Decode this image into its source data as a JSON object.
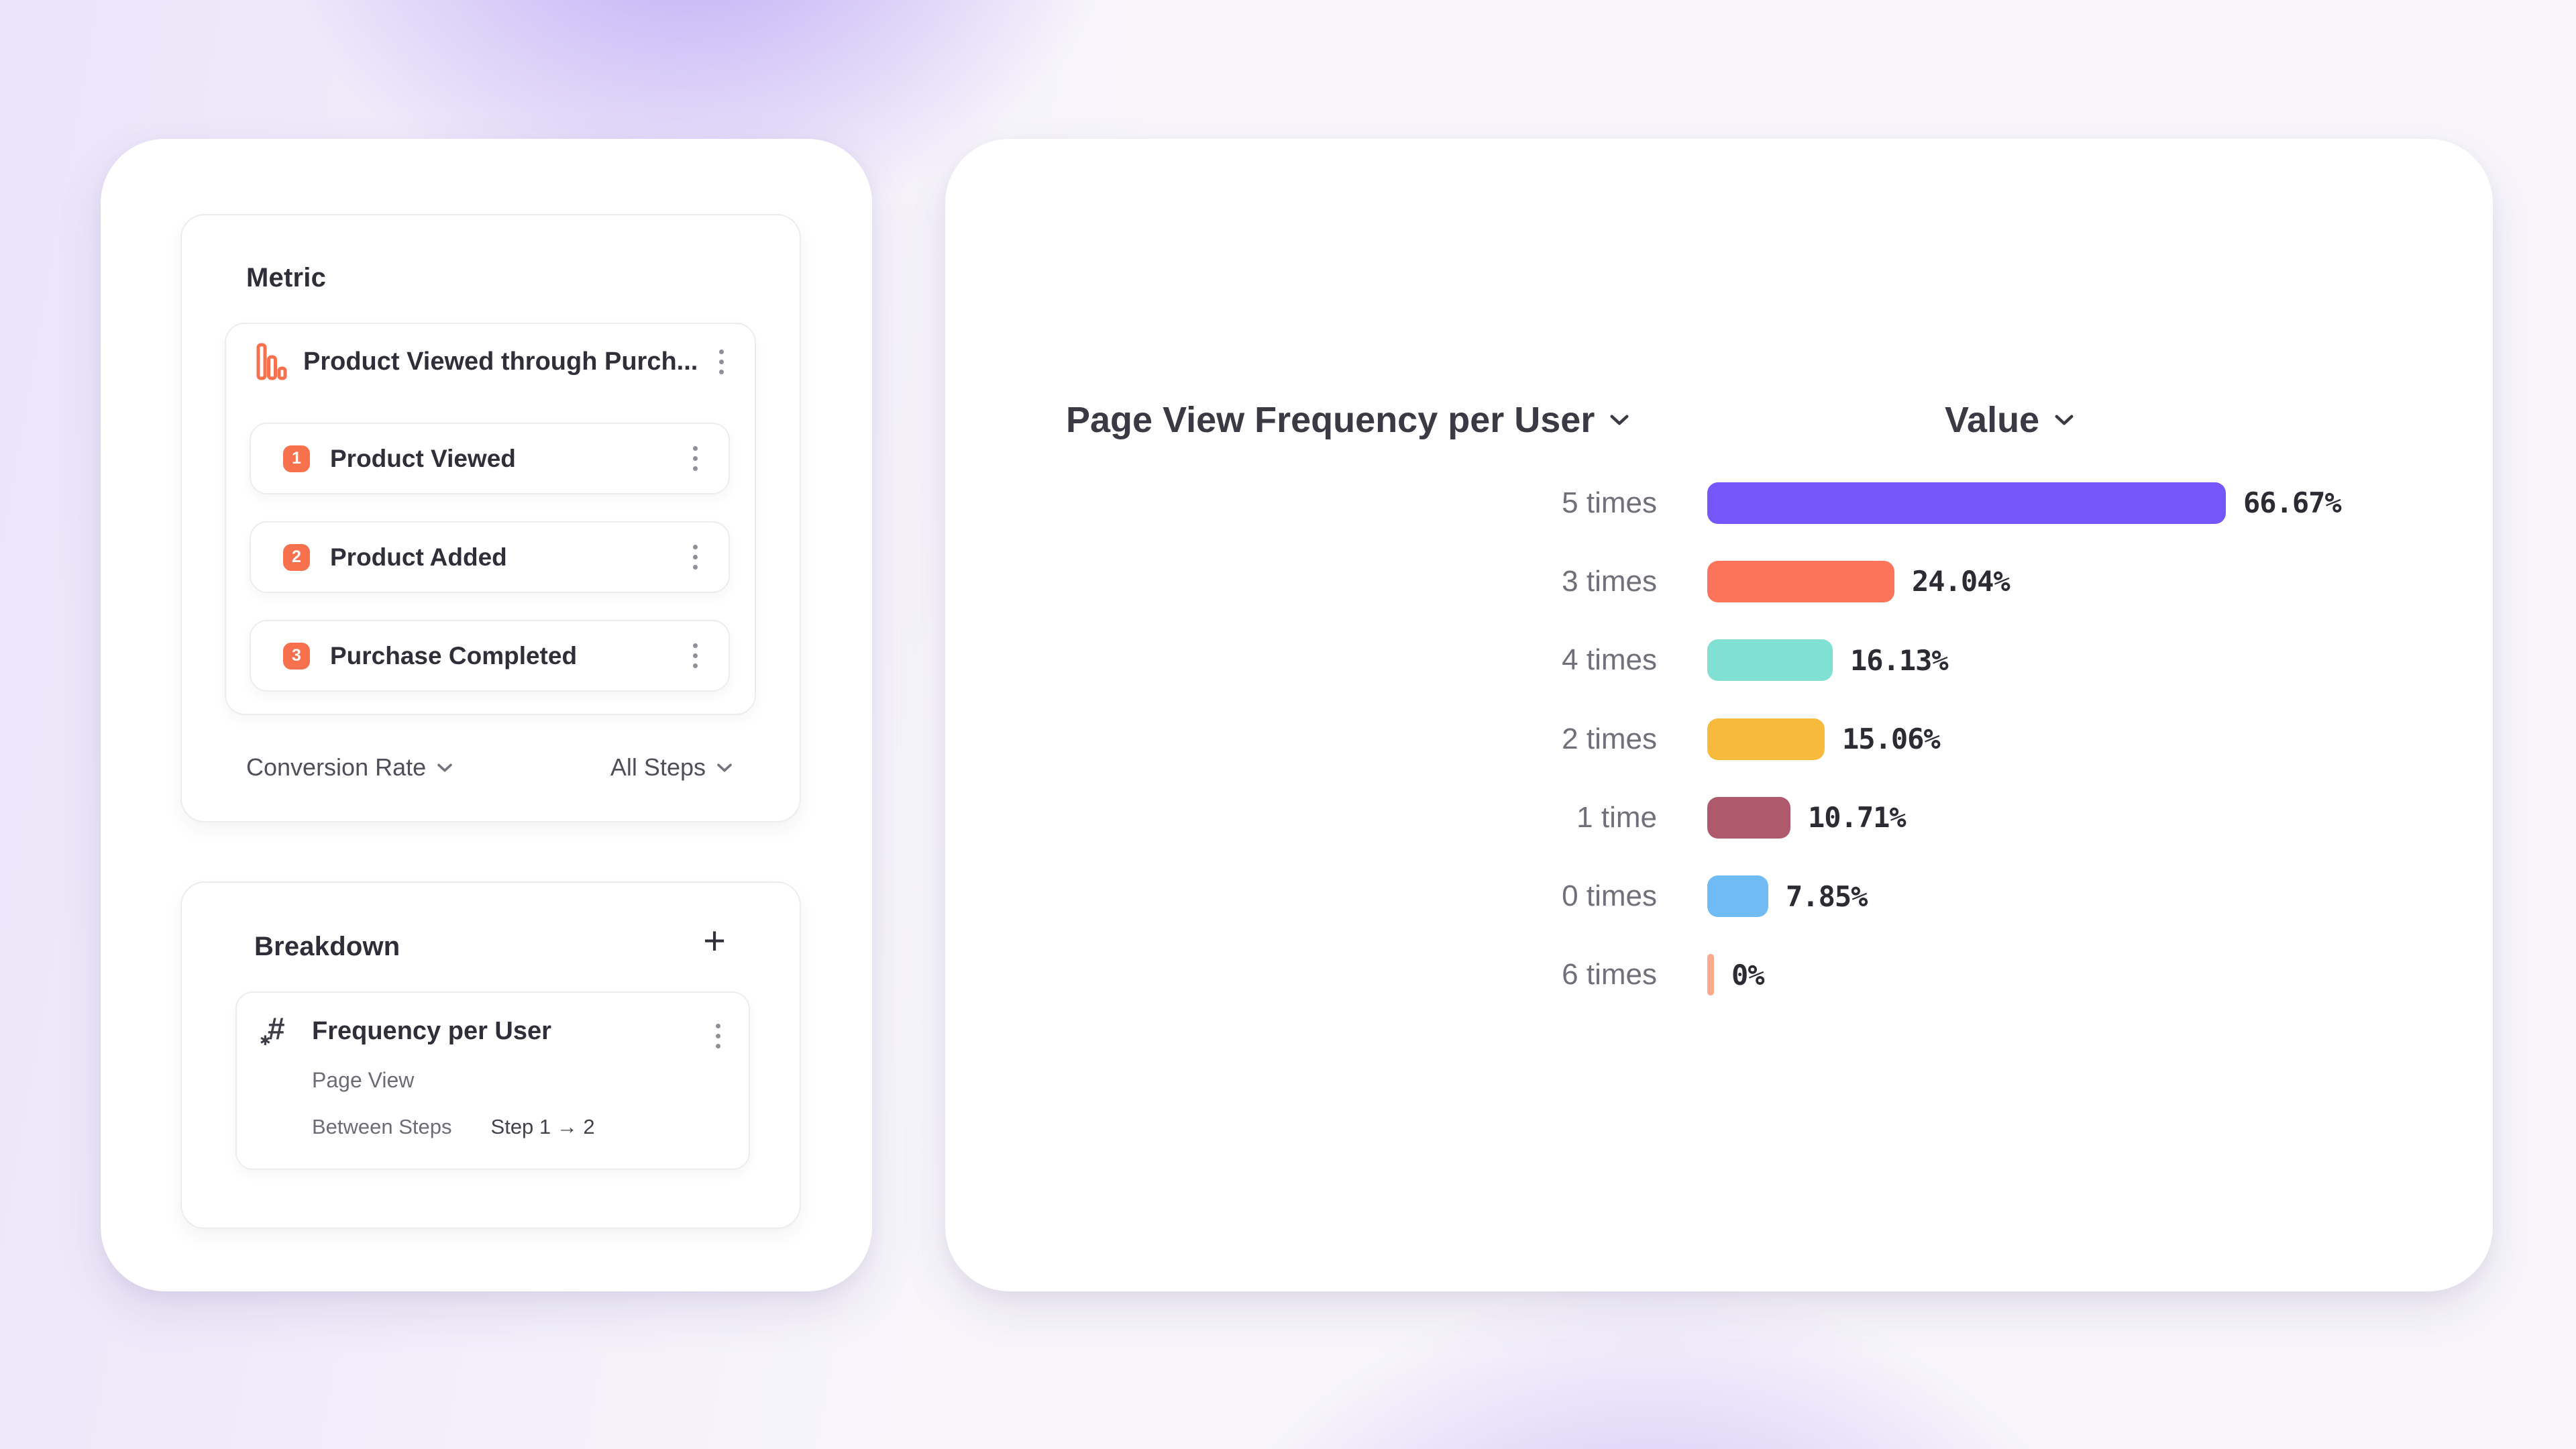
{
  "app": {
    "page_bg": "#f8f6fb",
    "glow_color": "#8a64f0",
    "accent_orange": "#f7714f"
  },
  "icons": {
    "metric_item_icon": "funnel-bars-icon",
    "breakdown_item_icon": "numeric-property-icon",
    "menu_icon": "kebab-menu-icon",
    "add_icon": "plus-icon",
    "dropdown_icon": "chevron-down-icon",
    "hash_glyph": "#",
    "hash_star_glyph": "✱"
  },
  "metric_panel": {
    "title": "Metric",
    "item": {
      "name": "Product Viewed through Purch...",
      "steps": [
        {
          "index": "1",
          "label": "Product Viewed"
        },
        {
          "index": "2",
          "label": "Product Added"
        },
        {
          "index": "3",
          "label": "Purchase Completed"
        }
      ],
      "step_badge_color": "#f7714f"
    },
    "footer": {
      "measurement_label": "Conversion Rate",
      "steps_filter_label": "All Steps"
    }
  },
  "breakdown_panel": {
    "title": "Breakdown",
    "add_button": "+",
    "item": {
      "name": "Frequency per User",
      "event": "Page View",
      "scope_label": "Between Steps",
      "scope_value": "Step 1 → 2"
    }
  },
  "chart": {
    "title": "Page View Frequency per User",
    "value_header": "Value"
  },
  "chart_data": {
    "type": "bar",
    "orientation": "horizontal",
    "categories": [
      "5 times",
      "3 times",
      "4 times",
      "2 times",
      "1 time",
      "0 times",
      "6 times"
    ],
    "values": [
      66.67,
      24.04,
      16.13,
      15.06,
      10.71,
      7.85,
      0
    ],
    "value_labels": [
      "66.67%",
      "24.04%",
      "16.13%",
      "15.06%",
      "10.71%",
      "7.85%",
      "0%"
    ],
    "colors": [
      "#7456fb",
      "#fc7459",
      "#80e0d2",
      "#f8ba3d",
      "#af5a6c",
      "#70baf5",
      "#f9a98c"
    ],
    "title": "Page View Frequency per User",
    "xlabel": "",
    "ylabel": "",
    "xlim": [
      0,
      100
    ],
    "grid": false,
    "legend": "none",
    "sort": "descending"
  }
}
